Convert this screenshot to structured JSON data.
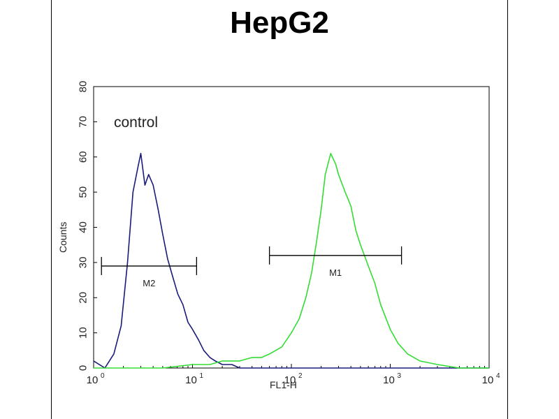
{
  "chart_data": {
    "type": "line",
    "title": "HepG2",
    "xlabel": "FL1-H",
    "ylabel": "Counts",
    "x_scale": "log",
    "xlim": [
      1,
      10000
    ],
    "ylim": [
      0,
      80
    ],
    "x_ticks": [
      {
        "value": 1,
        "base": "10",
        "exp": "0"
      },
      {
        "value": 10,
        "base": "10",
        "exp": "1"
      },
      {
        "value": 100,
        "base": "10",
        "exp": "2"
      },
      {
        "value": 1000,
        "base": "10",
        "exp": "3"
      },
      {
        "value": 10000,
        "base": "10",
        "exp": "4"
      }
    ],
    "y_ticks": [
      0,
      10,
      20,
      30,
      40,
      50,
      60,
      70,
      80
    ],
    "annotation": "control",
    "colors": {
      "control": "#1a1a7a",
      "sample": "#33dd33",
      "marker": "#000000"
    },
    "series": [
      {
        "key": "control",
        "color": "#1a1a7a",
        "x": [
          1.0,
          1.3,
          1.6,
          1.9,
          2.2,
          2.5,
          2.8,
          3.0,
          3.3,
          3.6,
          4.0,
          4.5,
          5.0,
          5.6,
          6.3,
          7.1,
          8.0,
          9.0,
          10.0,
          11.5,
          13.0,
          15.0,
          17.0,
          20.0,
          25.0,
          30.0,
          40.0,
          60.0,
          100.0,
          200.0,
          1000.0,
          10000.0
        ],
        "y": [
          2,
          0,
          4,
          12,
          30,
          50,
          57,
          61,
          52,
          55,
          52,
          45,
          38,
          31,
          26,
          21,
          18,
          13,
          11,
          8,
          5,
          3,
          2,
          1,
          1,
          0,
          0,
          0,
          0,
          0,
          0,
          0
        ]
      },
      {
        "key": "sample",
        "color": "#33dd33",
        "x": [
          1.0,
          2.0,
          5.0,
          10.0,
          15.0,
          20.0,
          30.0,
          40.0,
          50.0,
          60.0,
          80.0,
          100.0,
          120.0,
          140.0,
          160.0,
          180.0,
          200.0,
          220.0,
          250.0,
          280.0,
          300.0,
          350.0,
          400.0,
          450.0,
          500.0,
          600.0,
          700.0,
          800.0,
          1000.0,
          1200.0,
          1500.0,
          2000.0,
          3000.0,
          5000.0,
          10000.0
        ],
        "y": [
          0,
          0,
          0,
          1,
          1,
          2,
          2,
          3,
          3,
          4,
          6,
          10,
          14,
          20,
          27,
          36,
          45,
          55,
          61,
          58,
          55,
          50,
          46,
          39,
          35,
          29,
          24,
          18,
          11,
          7,
          4,
          2,
          1,
          0,
          0
        ]
      }
    ],
    "markers": [
      {
        "label": "M2",
        "x_start": 1.2,
        "x_end": 11.0,
        "y": 29
      },
      {
        "label": "M1",
        "x_start": 60.0,
        "x_end": 1300.0,
        "y": 32
      }
    ]
  }
}
